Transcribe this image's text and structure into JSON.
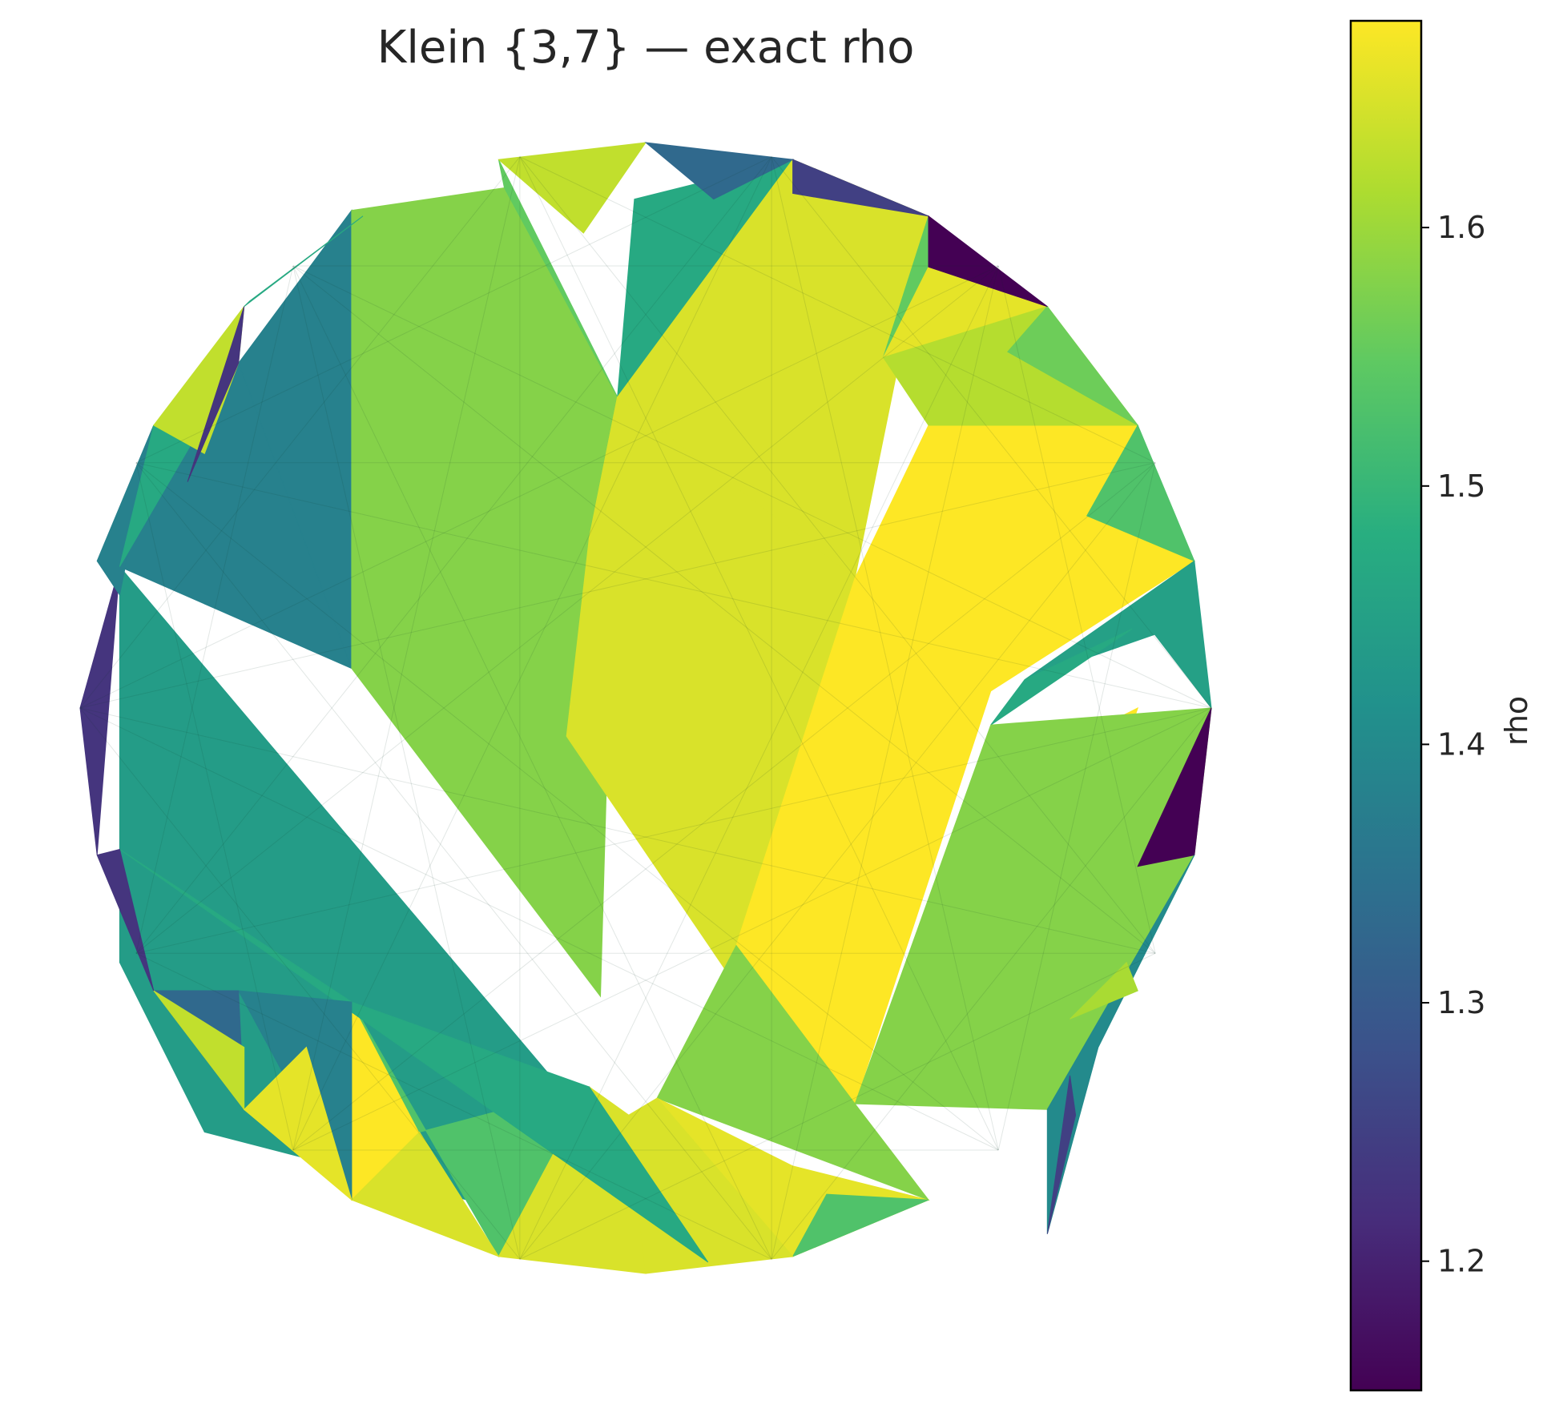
{
  "chart_data": {
    "type": "heatmap",
    "title": "Klein {3,7} — exact rho",
    "colorbar": {
      "label": "rho",
      "colormap": "viridis",
      "range": [
        1.15,
        1.68
      ],
      "ticks": [
        1.2,
        1.3,
        1.4,
        1.5,
        1.6
      ],
      "tick_labels": [
        "1.2",
        "1.3",
        "1.4",
        "1.5",
        "1.6"
      ]
    },
    "axes_visible": false,
    "grid": false,
    "faces": [
      {
        "rho": 1.44,
        "pts": [
          [
            -0.93,
            -0.45
          ],
          [
            -0.78,
            -0.75
          ],
          [
            0.11,
            -0.98
          ],
          [
            -0.93,
            0.25
          ]
        ]
      },
      {
        "rho": 1.38,
        "pts": [
          [
            -0.52,
            0.88
          ],
          [
            -0.52,
            0.07
          ],
          [
            -0.72,
            0.61
          ]
        ]
      },
      {
        "rho": 1.38,
        "pts": [
          [
            -0.72,
            0.61
          ],
          [
            -0.52,
            0.07
          ],
          [
            -0.93,
            0.25
          ]
        ]
      },
      {
        "rho": 1.58,
        "pts": [
          [
            -0.52,
            0.88
          ],
          [
            -0.52,
            0.07
          ],
          [
            -0.08,
            -0.51
          ],
          [
            -0.05,
            0.55
          ],
          [
            -0.25,
            0.92
          ]
        ]
      },
      {
        "rho": 1.55,
        "pts": [
          [
            -0.26,
            0.97
          ],
          [
            -0.05,
            0.55
          ],
          [
            -0.25,
            0.92
          ]
        ]
      },
      {
        "rho": 1.63,
        "pts": [
          [
            -0.26,
            0.97
          ],
          [
            0.0,
            1.0
          ],
          [
            -0.11,
            0.84
          ]
        ]
      },
      {
        "rho": 1.47,
        "pts": [
          [
            0.26,
            0.97
          ],
          [
            -0.05,
            0.55
          ],
          [
            -0.02,
            0.9
          ]
        ]
      },
      {
        "rho": 1.65,
        "pts": [
          [
            0.26,
            0.97
          ],
          [
            0.5,
            0.87
          ],
          [
            0.37,
            0.23
          ],
          [
            -0.1,
            0.3
          ],
          [
            -0.05,
            0.55
          ]
        ]
      },
      {
        "rho": 1.65,
        "pts": [
          [
            -0.05,
            0.55
          ],
          [
            -0.1,
            0.3
          ],
          [
            -0.14,
            -0.05
          ],
          [
            0.2,
            -0.55
          ],
          [
            0.37,
            0.23
          ]
        ]
      },
      {
        "rho": 1.68,
        "pts": [
          [
            0.5,
            0.5
          ],
          [
            0.87,
            0.5
          ],
          [
            0.78,
            0.34
          ],
          [
            0.97,
            0.26
          ],
          [
            0.61,
            0.03
          ],
          [
            0.37,
            -0.7
          ],
          [
            0.16,
            -0.42
          ],
          [
            0.37,
            0.23
          ]
        ]
      },
      {
        "rho": 1.68,
        "pts": [
          [
            0.87,
            0.0
          ],
          [
            0.69,
            -0.09
          ],
          [
            0.78,
            -0.26
          ]
        ]
      },
      {
        "rho": 1.55,
        "pts": [
          [
            0.5,
            0.87
          ],
          [
            0.5,
            0.78
          ],
          [
            0.42,
            0.62
          ]
        ]
      },
      {
        "rho": 1.66,
        "pts": [
          [
            0.5,
            0.78
          ],
          [
            0.71,
            0.71
          ],
          [
            0.42,
            0.62
          ]
        ]
      },
      {
        "rho": 1.62,
        "pts": [
          [
            0.71,
            0.71
          ],
          [
            0.87,
            0.5
          ],
          [
            0.5,
            0.5
          ],
          [
            0.42,
            0.62
          ]
        ]
      },
      {
        "rho": 1.56,
        "pts": [
          [
            0.71,
            0.71
          ],
          [
            0.87,
            0.5
          ],
          [
            0.64,
            0.63
          ]
        ]
      },
      {
        "rho": 1.53,
        "pts": [
          [
            0.87,
            0.5
          ],
          [
            0.97,
            0.26
          ],
          [
            0.78,
            0.34
          ]
        ]
      },
      {
        "rho": 1.45,
        "pts": [
          [
            0.97,
            0.26
          ],
          [
            1.0,
            0.0
          ],
          [
            0.9,
            0.13
          ],
          [
            0.67,
            0.05
          ]
        ]
      },
      {
        "rho": 1.47,
        "pts": [
          [
            0.67,
            0.05
          ],
          [
            0.86,
            0.14
          ],
          [
            0.61,
            -0.03
          ]
        ]
      },
      {
        "rho": 1.58,
        "pts": [
          [
            1.0,
            0.0
          ],
          [
            0.61,
            -0.03
          ],
          [
            0.37,
            -0.7
          ],
          [
            0.71,
            -0.71
          ],
          [
            0.97,
            -0.26
          ]
        ]
      },
      {
        "rho": 1.15,
        "pts": [
          [
            1.0,
            0.0
          ],
          [
            0.97,
            -0.26
          ],
          [
            0.87,
            -0.28
          ]
        ]
      },
      {
        "rho": 1.4,
        "pts": [
          [
            0.97,
            -0.26
          ],
          [
            0.71,
            -0.71
          ],
          [
            0.71,
            -0.93
          ],
          [
            0.8,
            -0.6
          ]
        ]
      },
      {
        "rho": 1.25,
        "pts": [
          [
            0.71,
            -0.93
          ],
          [
            0.75,
            -0.65
          ],
          [
            0.76,
            -0.72
          ]
        ]
      },
      {
        "rho": 1.61,
        "pts": [
          [
            0.87,
            -0.5
          ],
          [
            0.75,
            -0.55
          ],
          [
            0.85,
            -0.45
          ]
        ]
      },
      {
        "rho": 1.58,
        "pts": [
          [
            0.16,
            -0.42
          ],
          [
            0.37,
            -0.7
          ],
          [
            0.5,
            -0.87
          ],
          [
            0.02,
            -0.69
          ]
        ]
      },
      {
        "rho": 1.66,
        "pts": [
          [
            0.02,
            -0.69
          ],
          [
            0.26,
            -0.97
          ],
          [
            0.5,
            -0.87
          ],
          [
            0.26,
            -0.81
          ]
        ]
      },
      {
        "rho": 1.53,
        "pts": [
          [
            0.5,
            -0.87
          ],
          [
            0.26,
            -0.97
          ],
          [
            0.32,
            -0.86
          ]
        ]
      },
      {
        "rho": 1.68,
        "pts": [
          [
            -0.52,
            -0.52
          ],
          [
            -0.52,
            -0.87
          ],
          [
            -0.4,
            -0.75
          ]
        ]
      },
      {
        "rho": 1.53,
        "pts": [
          [
            -0.52,
            -0.52
          ],
          [
            -0.26,
            -0.97
          ],
          [
            -0.1,
            -0.67
          ],
          [
            -0.4,
            -0.75
          ]
        ]
      },
      {
        "rho": 1.65,
        "pts": [
          [
            -0.52,
            -0.87
          ],
          [
            -0.26,
            -0.97
          ],
          [
            -0.4,
            -0.75
          ]
        ]
      },
      {
        "rho": 1.65,
        "pts": [
          [
            -0.26,
            -0.97
          ],
          [
            0.0,
            -1.0
          ],
          [
            -0.03,
            -0.72
          ],
          [
            -0.1,
            -0.67
          ]
        ]
      },
      {
        "rho": 1.65,
        "pts": [
          [
            0.0,
            -1.0
          ],
          [
            0.26,
            -0.97
          ],
          [
            0.02,
            -0.69
          ],
          [
            -0.03,
            -0.72
          ]
        ]
      },
      {
        "rho": 1.47,
        "pts": [
          [
            0.11,
            -0.98
          ],
          [
            -0.1,
            -0.67
          ],
          [
            -0.52,
            -0.52
          ],
          [
            -0.93,
            -0.25
          ]
        ]
      },
      {
        "rho": 1.38,
        "pts": [
          [
            -0.72,
            -0.5
          ],
          [
            -0.52,
            -0.52
          ],
          [
            -0.52,
            -0.87
          ]
        ]
      },
      {
        "rho": 1.33,
        "pts": [
          [
            -0.87,
            -0.5
          ],
          [
            -0.72,
            -0.5
          ],
          [
            -0.71,
            -0.71
          ]
        ]
      },
      {
        "rho": 1.63,
        "pts": [
          [
            -0.87,
            -0.5
          ],
          [
            -0.71,
            -0.71
          ],
          [
            -0.71,
            -0.6
          ]
        ]
      },
      {
        "rho": 1.66,
        "pts": [
          [
            -0.71,
            -0.71
          ],
          [
            -0.6,
            -0.6
          ],
          [
            -0.52,
            -0.87
          ]
        ]
      },
      {
        "rho": 1.23,
        "pts": [
          [
            -0.97,
            -0.26
          ],
          [
            -0.93,
            -0.25
          ],
          [
            -0.87,
            -0.5
          ]
        ]
      },
      {
        "rho": 1.23,
        "pts": [
          [
            -1.0,
            0.0
          ],
          [
            -0.93,
            0.25
          ],
          [
            -0.97,
            -0.26
          ]
        ]
      },
      {
        "rho": 1.38,
        "pts": [
          [
            -0.97,
            0.26
          ],
          [
            -0.87,
            0.5
          ],
          [
            -0.93,
            0.2
          ]
        ]
      },
      {
        "rho": 1.47,
        "pts": [
          [
            -0.87,
            0.5
          ],
          [
            -0.72,
            0.61
          ],
          [
            -0.93,
            0.25
          ]
        ]
      },
      {
        "rho": 1.63,
        "pts": [
          [
            -0.87,
            0.5
          ],
          [
            -0.71,
            0.71
          ],
          [
            -0.72,
            0.61
          ],
          [
            -0.78,
            0.45
          ]
        ]
      },
      {
        "rho": 1.23,
        "pts": [
          [
            -0.71,
            0.71
          ],
          [
            -0.72,
            0.61
          ],
          [
            -0.81,
            0.4
          ]
        ]
      },
      {
        "rho": 1.47,
        "pts": [
          [
            -0.71,
            0.71
          ],
          [
            -0.5,
            0.87
          ],
          [
            -0.7,
            0.72
          ]
        ]
      },
      {
        "rho": 1.33,
        "pts": [
          [
            0.0,
            1.0
          ],
          [
            0.26,
            0.97
          ],
          [
            0.12,
            0.9
          ]
        ]
      },
      {
        "rho": 1.25,
        "pts": [
          [
            0.26,
            0.97
          ],
          [
            0.5,
            0.87
          ],
          [
            0.26,
            0.91
          ]
        ]
      },
      {
        "rho": 1.15,
        "pts": [
          [
            0.5,
            0.87
          ],
          [
            0.71,
            0.71
          ],
          [
            0.5,
            0.78
          ]
        ]
      }
    ]
  }
}
